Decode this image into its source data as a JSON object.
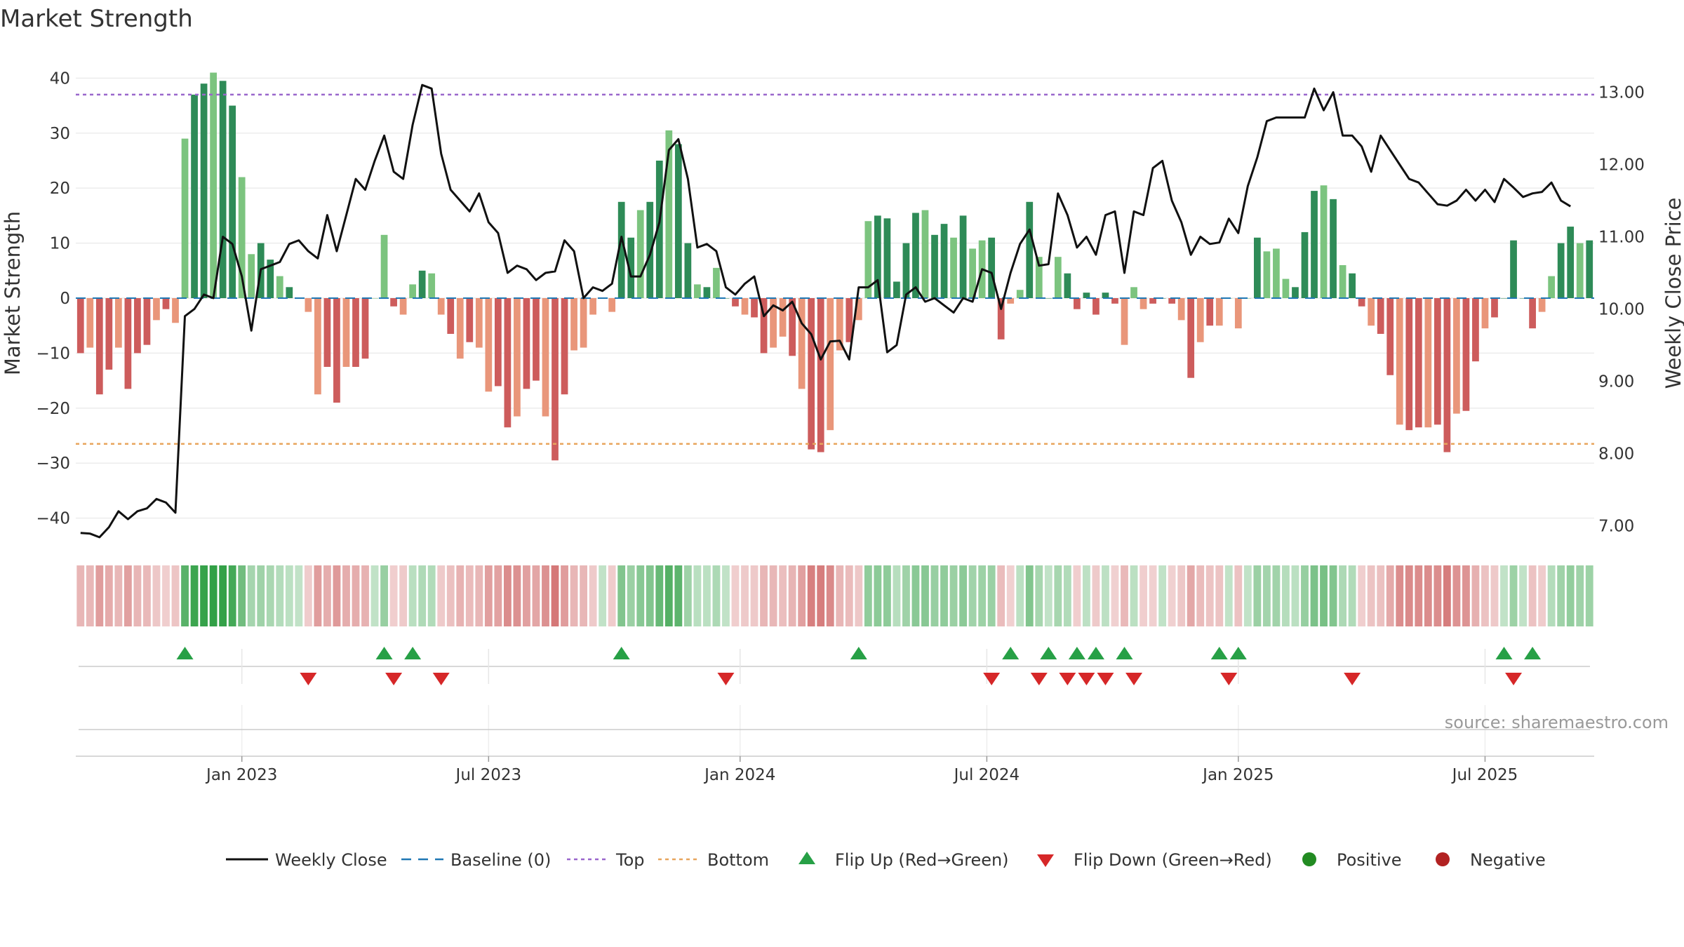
{
  "chart_data": {
    "type": "bar",
    "title": "Market Strength",
    "ylabel_left": "Market Strength",
    "ylabel_right": "Weekly Close Price",
    "y_left_ticks": [
      "40",
      "30",
      "20",
      "10",
      "0",
      "−10",
      "−20",
      "−30",
      "−40"
    ],
    "y_left_tick_values": [
      40,
      30,
      20,
      10,
      0,
      -10,
      -20,
      -30,
      -40
    ],
    "y_left_range": [
      -44,
      44
    ],
    "y_right_ticks": [
      "13.00",
      "12.00",
      "11.00",
      "10.00",
      "9.00",
      "8.00",
      "7.00"
    ],
    "y_right_tick_values": [
      13,
      12,
      11,
      10,
      9,
      8,
      7
    ],
    "y_right_range": [
      6.8,
      13.5
    ],
    "x_ticks": [
      "Jan 2023",
      "Jul 2023",
      "Jan 2024",
      "Jul 2024",
      "Jan 2025",
      "Jul 2025"
    ],
    "x_tick_weeks": [
      17,
      43,
      69.5,
      95.5,
      122,
      148
    ],
    "top_level": 37,
    "bottom_level": -26.5,
    "strength": [
      -10,
      -9,
      -17.5,
      -13,
      -9,
      -16.5,
      -10,
      -8.5,
      -4,
      -2,
      -4.5,
      29,
      37,
      39,
      41,
      39.5,
      35,
      22,
      8,
      10,
      7,
      4,
      2,
      0,
      -2.5,
      -17.5,
      -12.5,
      -19,
      -12.5,
      -12.5,
      -11,
      0,
      11.5,
      -1.5,
      -3,
      2.5,
      5,
      4.5,
      -3,
      -6.5,
      -11,
      -8,
      -9,
      -17,
      -16,
      -23.5,
      -21.5,
      -16.5,
      -15,
      -21.5,
      -29.5,
      -17.5,
      -9.5,
      -9,
      -3,
      0,
      -2.5,
      17.5,
      11,
      16,
      17.5,
      25,
      30.5,
      28,
      10,
      2.5,
      2,
      5.5,
      0,
      -1.5,
      -3,
      -3.5,
      -10,
      -9,
      -7,
      -10.5,
      -16.5,
      -27.5,
      -28,
      -24,
      -9.5,
      -8,
      -4,
      14,
      15,
      14.5,
      3,
      10,
      15.5,
      16,
      11.5,
      13.5,
      11,
      15,
      9,
      10.5,
      11,
      -7.5,
      -1,
      1.5,
      17.5,
      7.5,
      0,
      7.5,
      4.5,
      -2,
      1,
      -3,
      1,
      -1,
      -8.5,
      2,
      -2,
      -1,
      0,
      -1,
      -4,
      -14.5,
      -8,
      -5,
      -5,
      0,
      -5.5,
      0,
      11,
      8.5,
      9,
      3.5,
      2,
      12,
      19.5,
      20.5,
      18,
      6,
      4.5,
      -1.5,
      -5,
      -6.5,
      -14,
      -23,
      -24,
      -23.5,
      -23.5,
      -23,
      -28,
      -21,
      -20.5,
      -11.5,
      -5.5,
      -3.5,
      0,
      10.5,
      0,
      -5.5,
      -2.5,
      4,
      10,
      13,
      10,
      10.5
    ],
    "weekly_close": [
      6.9,
      6.89,
      6.84,
      6.98,
      7.2,
      7.09,
      7.2,
      7.24,
      7.37,
      7.32,
      7.18,
      9.9,
      10,
      10.2,
      10.15,
      11,
      10.9,
      10.45,
      9.7,
      10.55,
      10.6,
      10.65,
      10.9,
      10.95,
      10.8,
      10.7,
      11.3,
      10.8,
      11.3,
      11.8,
      11.65,
      12.05,
      12.4,
      11.9,
      11.8,
      12.55,
      13.1,
      13.05,
      12.15,
      11.65,
      11.5,
      11.35,
      11.6,
      11.2,
      11.05,
      10.5,
      10.6,
      10.55,
      10.4,
      10.5,
      10.52,
      10.95,
      10.8,
      10.15,
      10.3,
      10.25,
      10.35,
      11,
      10.45,
      10.45,
      10.75,
      11.2,
      12.2,
      12.35,
      11.8,
      10.85,
      10.9,
      10.8,
      10.3,
      10.2,
      10.35,
      10.45,
      9.9,
      10.05,
      9.98,
      10.1,
      9.8,
      9.65,
      9.3,
      9.55,
      9.56,
      9.3,
      10.3,
      10.3,
      10.4,
      9.4,
      9.5,
      10.2,
      10.3,
      10.1,
      10.15,
      10.05,
      9.95,
      10.15,
      10.1,
      10.55,
      10.5,
      10,
      10.5,
      10.9,
      11.1,
      10.6,
      10.62,
      11.6,
      11.3,
      10.85,
      11,
      10.75,
      11.3,
      11.35,
      10.5,
      11.35,
      11.3,
      11.95,
      12.05,
      11.5,
      11.2,
      10.75,
      11,
      10.9,
      10.92,
      11.25,
      11.05,
      11.7,
      12.1,
      12.6,
      12.65,
      12.65,
      12.65,
      12.65,
      13.05,
      12.75,
      13.0,
      12.4,
      12.4,
      12.25,
      11.9,
      12.4,
      12.2,
      12,
      11.8,
      11.75,
      11.6,
      11.45,
      11.43,
      11.5,
      11.65,
      11.5,
      11.65,
      11.48,
      11.8,
      11.68,
      11.55,
      11.6,
      11.62,
      11.75,
      11.5,
      11.42
    ],
    "flip_up_weeks": [
      11,
      32,
      35,
      57,
      82,
      98,
      102,
      105,
      107,
      110,
      120,
      122,
      150,
      153
    ],
    "flip_down_weeks": [
      24,
      33,
      38,
      68,
      96,
      101,
      104,
      106,
      108,
      111,
      121,
      134,
      151
    ],
    "colors": {
      "strong_green": "#2e8b57",
      "light_green": "#7cc47f",
      "strong_red": "#cd5c5c",
      "light_red": "#e9967a",
      "line": "#111111",
      "top_line": "#9966cc",
      "bottom_line": "#e8a55d",
      "baseline": "#1f77b4",
      "flip_up": "#27a046",
      "flip_down": "#d62728",
      "positive": "#228b22",
      "negative": "#b22222"
    },
    "legend": [
      {
        "label": "Weekly Close",
        "icon": "line-solid"
      },
      {
        "label": "Baseline (0)",
        "icon": "line-dash"
      },
      {
        "label": "Top",
        "icon": "line-dot-purple"
      },
      {
        "label": "Bottom",
        "icon": "line-dot-orange"
      },
      {
        "label": "Flip Up (Red→Green)",
        "icon": "triangle-up"
      },
      {
        "label": "Flip Down (Green→Red)",
        "icon": "triangle-down"
      },
      {
        "label": "Positive",
        "icon": "circle-green"
      },
      {
        "label": "Negative",
        "icon": "circle-red"
      }
    ],
    "source": "source: sharemaestro.com"
  }
}
